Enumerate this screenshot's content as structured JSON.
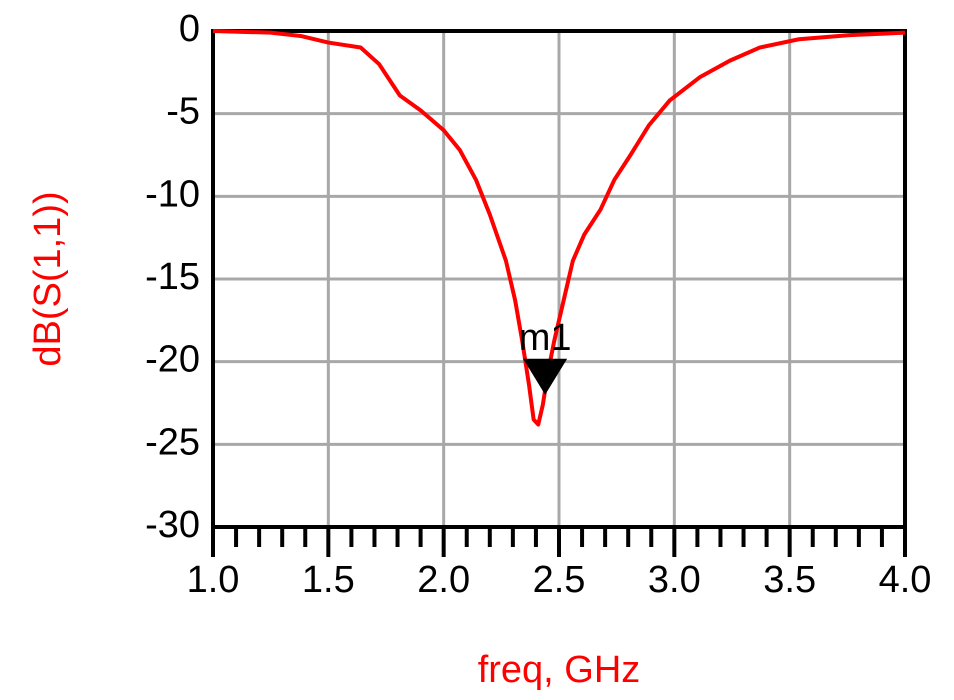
{
  "chart_data": {
    "type": "line",
    "xlabel": "freq, GHz",
    "ylabel": "dB(S(1,1))",
    "color": "#ff0000",
    "grid": true,
    "xlim": [
      1,
      4
    ],
    "ylim": [
      -30,
      0
    ],
    "xticks": [
      {
        "value": 1,
        "label": "1.0"
      },
      1.5,
      {
        "value": 2,
        "label": "2.0"
      },
      2.5,
      {
        "value": 3,
        "label": "3.0"
      },
      3.5,
      {
        "value": 4,
        "label": "4.0"
      }
    ],
    "xminorticks": [
      1.1,
      1.2,
      1.3,
      1.4,
      1.6,
      1.7,
      1.8,
      1.9,
      2.1,
      2.2,
      2.3,
      2.4,
      2.6,
      2.7,
      2.8,
      2.9,
      3.1,
      3.2,
      3.3,
      3.4,
      3.6,
      3.7,
      3.8,
      3.9
    ],
    "yticks": [
      0,
      -5,
      -10,
      -15,
      -20,
      -25,
      -30
    ],
    "x": [
      1.0,
      1.25,
      1.38,
      1.5,
      1.64,
      1.72,
      1.81,
      1.9,
      2.0,
      2.07,
      2.14,
      2.2,
      2.27,
      2.31,
      2.34,
      2.37,
      2.39,
      2.41,
      2.43,
      2.45,
      2.48,
      2.52,
      2.56,
      2.61,
      2.68,
      2.74,
      2.81,
      2.89,
      2.98,
      3.11,
      3.24,
      3.37,
      3.54,
      3.76,
      4.0
    ],
    "values": [
      0,
      -0.1,
      -0.3,
      -0.7,
      -1.0,
      -2.0,
      -3.9,
      -4.8,
      -6.0,
      -7.2,
      -9.0,
      -11.1,
      -13.9,
      -16.3,
      -18.7,
      -21.4,
      -23.5,
      -23.8,
      -22.6,
      -20.8,
      -18.7,
      -16.3,
      -13.9,
      -12.3,
      -10.8,
      -9.0,
      -7.5,
      -5.7,
      -4.2,
      -2.8,
      -1.8,
      -1.0,
      -0.5,
      -0.25,
      -0.1
    ],
    "marker": {
      "label": "m1",
      "x": 2.44,
      "y": -22
    }
  }
}
